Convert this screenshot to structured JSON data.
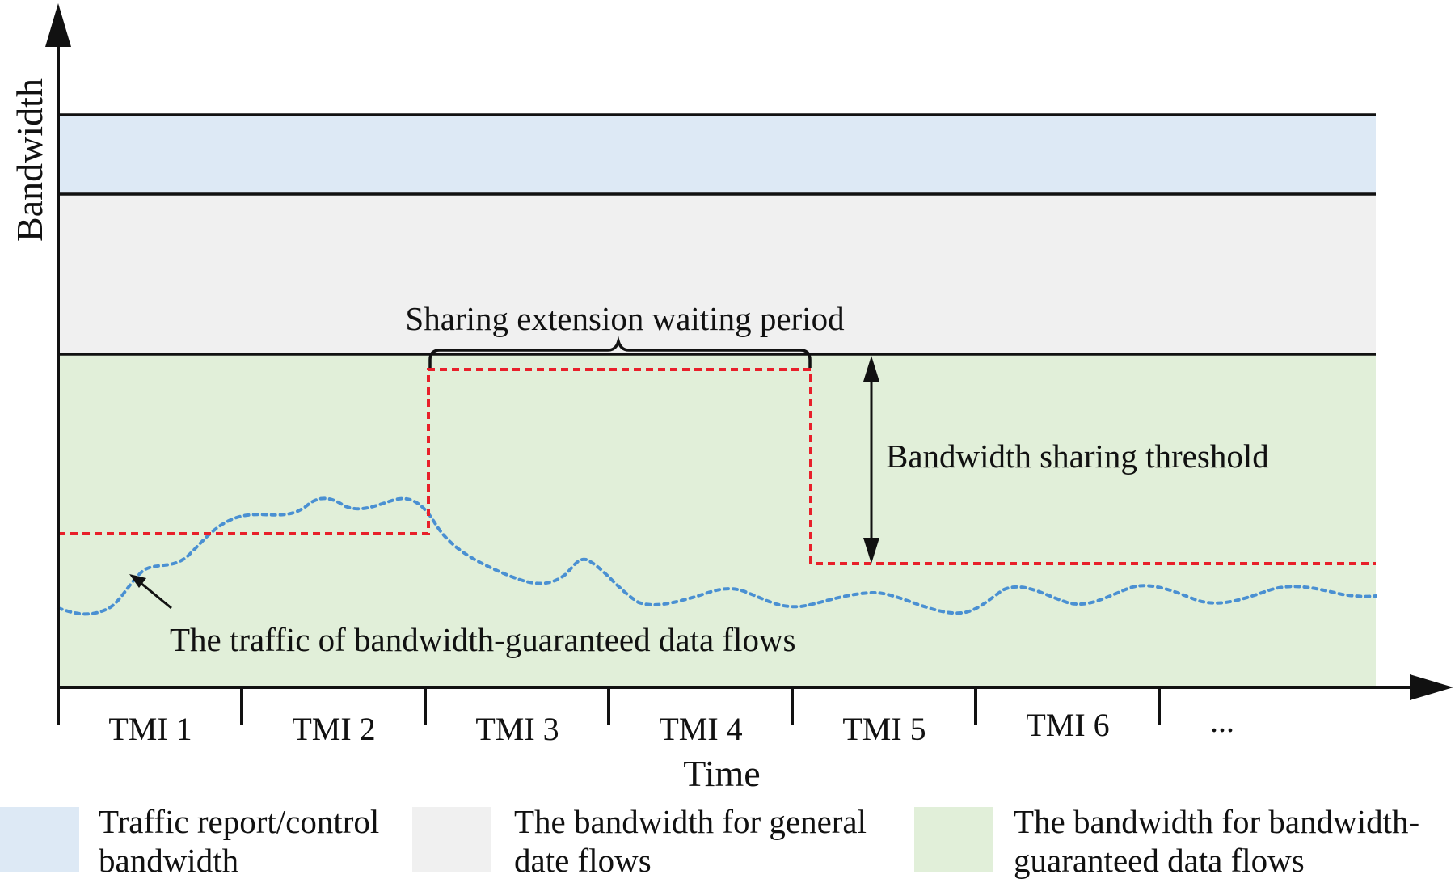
{
  "axes": {
    "y_label": "Bandwidth",
    "x_label": "Time"
  },
  "intervals": [
    "TMI 1",
    "TMI 2",
    "TMI 3",
    "TMI 4",
    "TMI 5",
    "TMI 6",
    "..."
  ],
  "annotations": {
    "waiting_period": "Sharing extension waiting period",
    "threshold": "Bandwidth sharing  threshold",
    "traffic": "The traffic of  bandwidth-guaranteed data flows"
  },
  "legend": [
    {
      "line1": "Traffic report/control",
      "line2": "bandwidth",
      "color": "#dde9f5"
    },
    {
      "line1": "The bandwidth for general",
      "line2": "date flows",
      "color": "#f0f0f0"
    },
    {
      "line1": "The bandwidth for bandwidth-",
      "line2": "guaranteed data flows",
      "color": "#e1efd9"
    }
  ],
  "colors": {
    "control_band": "#dde9f5",
    "general_band": "#f0f0f0",
    "guaranteed_band": "#e1efd9",
    "threshold_line": "#e8202a",
    "traffic_curve": "#4a90d2"
  }
}
